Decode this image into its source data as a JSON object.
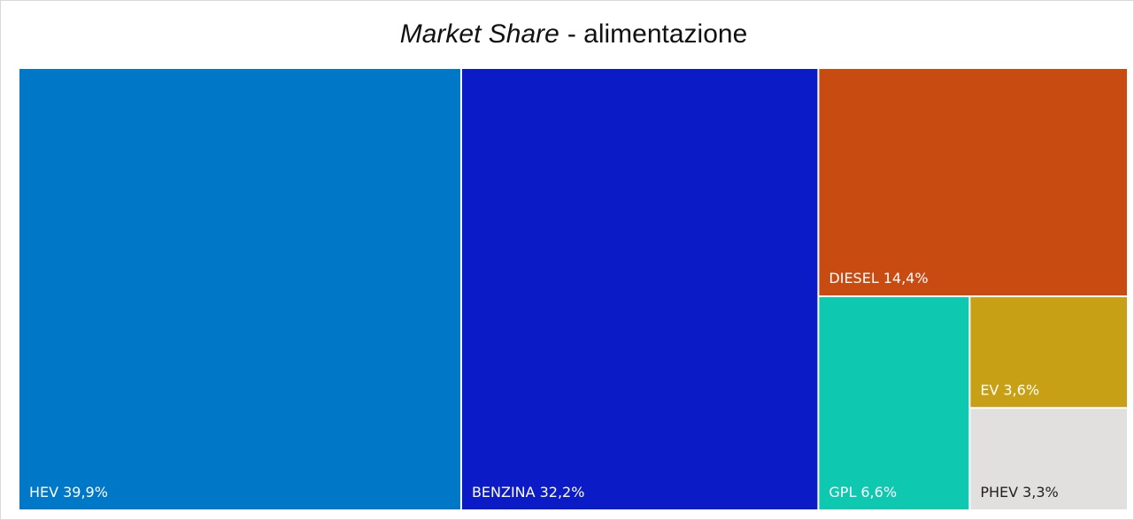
{
  "chart_data": {
    "type": "treemap",
    "title": [
      "Market Share",
      "- alimentazione"
    ],
    "categories": [
      "HEV",
      "BENZINA",
      "DIESEL",
      "GPL",
      "EV",
      "PHEV"
    ],
    "values": [
      39.9,
      32.2,
      14.4,
      6.6,
      3.6,
      3.3
    ],
    "value_labels": [
      "39,9%",
      "32,2%",
      "14,4%",
      "6,6%",
      "3,6%",
      "3,3%"
    ],
    "colors": [
      "#0078c8",
      "#0b1cc6",
      "#c84b12",
      "#0ec8b0",
      "#c8a016",
      "#e2e0de"
    ],
    "label_colors": [
      "#ffffff",
      "#ffffff",
      "#ffffff",
      "#ffffff",
      "#ffffff",
      "#222222"
    ]
  }
}
